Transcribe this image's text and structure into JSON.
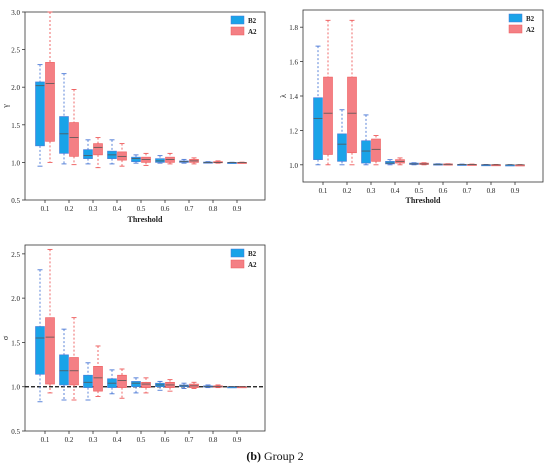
{
  "caption": {
    "label": "(b)",
    "text": "Group 2"
  },
  "colors": {
    "B2": "#1aa3e8",
    "A2": "#f47f84",
    "whisker_B2": "#4a78d6",
    "whisker_A2": "#ee5a5a"
  },
  "chart_data": [
    {
      "type": "box",
      "xlabel": "Threshold",
      "ylabel": "γ",
      "ylim": [
        0.5,
        3.0
      ],
      "yticks": [
        "0.5",
        "1.0",
        "1.5",
        "2.0",
        "2.5",
        "3.0"
      ],
      "categories": [
        "0.1",
        "0.2",
        "0.3",
        "0.4",
        "0.5",
        "0.6",
        "0.7",
        "0.8",
        "0.9"
      ],
      "legend": "top-right",
      "reference_line": null,
      "series": [
        {
          "name": "B2",
          "boxes": [
            {
              "min": 0.95,
              "q1": 1.22,
              "median": 2.02,
              "q3": 2.07,
              "max": 2.3
            },
            {
              "min": 0.98,
              "q1": 1.12,
              "median": 1.38,
              "q3": 1.61,
              "max": 2.18
            },
            {
              "min": 0.98,
              "q1": 1.05,
              "median": 1.09,
              "q3": 1.17,
              "max": 1.3
            },
            {
              "min": 0.98,
              "q1": 1.05,
              "median": 1.1,
              "q3": 1.15,
              "max": 1.3
            },
            {
              "min": 0.99,
              "q1": 1.01,
              "median": 1.05,
              "q3": 1.07,
              "max": 1.1
            },
            {
              "min": 0.99,
              "q1": 1.0,
              "median": 1.02,
              "q3": 1.05,
              "max": 1.09
            },
            {
              "min": 0.99,
              "q1": 1.0,
              "median": 1.01,
              "q3": 1.02,
              "max": 1.04
            },
            {
              "min": 0.995,
              "q1": 1.0,
              "median": 1.0,
              "q3": 1.005,
              "max": 1.01
            },
            {
              "min": 0.998,
              "q1": 0.999,
              "median": 1.0,
              "q3": 1.0,
              "max": 1.002
            }
          ]
        },
        {
          "name": "A2",
          "boxes": [
            {
              "min": 1.0,
              "q1": 1.28,
              "median": 2.05,
              "q3": 2.33,
              "max": 3.0
            },
            {
              "min": 0.97,
              "q1": 1.08,
              "median": 1.33,
              "q3": 1.53,
              "max": 1.97
            },
            {
              "min": 0.93,
              "q1": 1.1,
              "median": 1.2,
              "q3": 1.25,
              "max": 1.33
            },
            {
              "min": 0.95,
              "q1": 1.03,
              "median": 1.08,
              "q3": 1.14,
              "max": 1.25
            },
            {
              "min": 0.96,
              "q1": 1.0,
              "median": 1.04,
              "q3": 1.07,
              "max": 1.12
            },
            {
              "min": 0.98,
              "q1": 1.0,
              "median": 1.04,
              "q3": 1.07,
              "max": 1.12
            },
            {
              "min": 0.98,
              "q1": 1.0,
              "median": 1.02,
              "q3": 1.04,
              "max": 1.06
            },
            {
              "min": 0.99,
              "q1": 0.995,
              "median": 1.0,
              "q3": 1.01,
              "max": 1.02
            },
            {
              "min": 0.998,
              "q1": 0.999,
              "median": 1.0,
              "q3": 1.001,
              "max": 1.003
            }
          ]
        }
      ]
    },
    {
      "type": "box",
      "xlabel": "Threshold",
      "ylabel": "λ",
      "ylim": [
        0.9,
        1.9
      ],
      "yticks": [
        "1.0",
        "1.2",
        "1.4",
        "1.6",
        "1.8"
      ],
      "categories": [
        "0.1",
        "0.2",
        "0.3",
        "0.4",
        "0.5",
        "0.6",
        "0.7",
        "0.8",
        "0.9"
      ],
      "legend": "top-right",
      "reference_line": null,
      "series": [
        {
          "name": "B2",
          "boxes": [
            {
              "min": 1.0,
              "q1": 1.03,
              "median": 1.27,
              "q3": 1.39,
              "max": 1.69
            },
            {
              "min": 1.0,
              "q1": 1.02,
              "median": 1.12,
              "q3": 1.18,
              "max": 1.32
            },
            {
              "min": 1.0,
              "q1": 1.01,
              "median": 1.08,
              "q3": 1.14,
              "max": 1.29
            },
            {
              "min": 1.0,
              "q1": 1.005,
              "median": 1.01,
              "q3": 1.02,
              "max": 1.03
            },
            {
              "min": 1.0,
              "q1": 1.002,
              "median": 1.005,
              "q3": 1.01,
              "max": 1.012
            },
            {
              "min": 1.0,
              "q1": 1.001,
              "median": 1.003,
              "q3": 1.005,
              "max": 1.006
            },
            {
              "min": 1.0,
              "q1": 1.0,
              "median": 1.002,
              "q3": 1.003,
              "max": 1.004
            },
            {
              "min": 1.0,
              "q1": 1.0,
              "median": 1.0,
              "q3": 1.001,
              "max": 1.002
            },
            {
              "min": 1.0,
              "q1": 1.0,
              "median": 1.0,
              "q3": 1.0,
              "max": 1.001
            }
          ]
        },
        {
          "name": "A2",
          "boxes": [
            {
              "min": 1.0,
              "q1": 1.06,
              "median": 1.3,
              "q3": 1.51,
              "max": 1.84
            },
            {
              "min": 1.0,
              "q1": 1.07,
              "median": 1.3,
              "q3": 1.51,
              "max": 1.84
            },
            {
              "min": 1.0,
              "q1": 1.02,
              "median": 1.09,
              "q3": 1.15,
              "max": 1.17
            },
            {
              "min": 1.0,
              "q1": 1.01,
              "median": 1.02,
              "q3": 1.03,
              "max": 1.04
            },
            {
              "min": 1.0,
              "q1": 1.002,
              "median": 1.005,
              "q3": 1.01,
              "max": 1.012
            },
            {
              "min": 1.0,
              "q1": 1.001,
              "median": 1.003,
              "q3": 1.005,
              "max": 1.006
            },
            {
              "min": 1.0,
              "q1": 1.0,
              "median": 1.002,
              "q3": 1.003,
              "max": 1.004
            },
            {
              "min": 1.0,
              "q1": 1.0,
              "median": 1.0,
              "q3": 1.001,
              "max": 1.002
            },
            {
              "min": 1.0,
              "q1": 1.0,
              "median": 1.0,
              "q3": 1.0,
              "max": 1.001
            }
          ]
        }
      ]
    },
    {
      "type": "box",
      "xlabel": "",
      "ylabel": "σ",
      "ylim": [
        0.5,
        2.6
      ],
      "yticks": [
        "0.5",
        "1.0",
        "1.5",
        "2.0",
        "2.5"
      ],
      "categories": [
        "0.1",
        "0.2",
        "0.3",
        "0.4",
        "0.5",
        "0.6",
        "0.7",
        "0.8",
        "0.9"
      ],
      "legend": "top-right",
      "reference_line": 1.0,
      "series": [
        {
          "name": "B2",
          "boxes": [
            {
              "min": 0.83,
              "q1": 1.14,
              "median": 1.55,
              "q3": 1.68,
              "max": 2.32
            },
            {
              "min": 0.85,
              "q1": 1.02,
              "median": 1.18,
              "q3": 1.36,
              "max": 1.65
            },
            {
              "min": 0.85,
              "q1": 0.99,
              "median": 1.05,
              "q3": 1.13,
              "max": 1.27
            },
            {
              "min": 0.92,
              "q1": 0.99,
              "median": 1.04,
              "q3": 1.09,
              "max": 1.19
            },
            {
              "min": 0.93,
              "q1": 1.0,
              "median": 1.04,
              "q3": 1.06,
              "max": 1.1
            },
            {
              "min": 0.96,
              "q1": 1.0,
              "median": 1.02,
              "q3": 1.04,
              "max": 1.06
            },
            {
              "min": 0.98,
              "q1": 1.0,
              "median": 1.01,
              "q3": 1.02,
              "max": 1.04
            },
            {
              "min": 0.99,
              "q1": 1.0,
              "median": 1.0,
              "q3": 1.01,
              "max": 1.02
            },
            {
              "min": 0.998,
              "q1": 0.999,
              "median": 1.0,
              "q3": 1.0,
              "max": 1.002
            }
          ]
        },
        {
          "name": "A2",
          "boxes": [
            {
              "min": 0.93,
              "q1": 1.03,
              "median": 1.56,
              "q3": 1.78,
              "max": 2.55
            },
            {
              "min": 0.85,
              "q1": 1.02,
              "median": 1.18,
              "q3": 1.33,
              "max": 1.78
            },
            {
              "min": 0.89,
              "q1": 0.95,
              "median": 1.1,
              "q3": 1.23,
              "max": 1.46
            },
            {
              "min": 0.87,
              "q1": 0.99,
              "median": 1.07,
              "q3": 1.13,
              "max": 1.2
            },
            {
              "min": 0.93,
              "q1": 0.99,
              "median": 1.03,
              "q3": 1.05,
              "max": 1.1
            },
            {
              "min": 0.95,
              "q1": 0.99,
              "median": 1.02,
              "q3": 1.05,
              "max": 1.08
            },
            {
              "min": 0.98,
              "q1": 0.99,
              "median": 1.01,
              "q3": 1.03,
              "max": 1.05
            },
            {
              "min": 0.99,
              "q1": 0.995,
              "median": 1.0,
              "q3": 1.01,
              "max": 1.02
            },
            {
              "min": 0.998,
              "q1": 0.999,
              "median": 1.0,
              "q3": 1.001,
              "max": 1.003
            }
          ]
        }
      ]
    }
  ]
}
